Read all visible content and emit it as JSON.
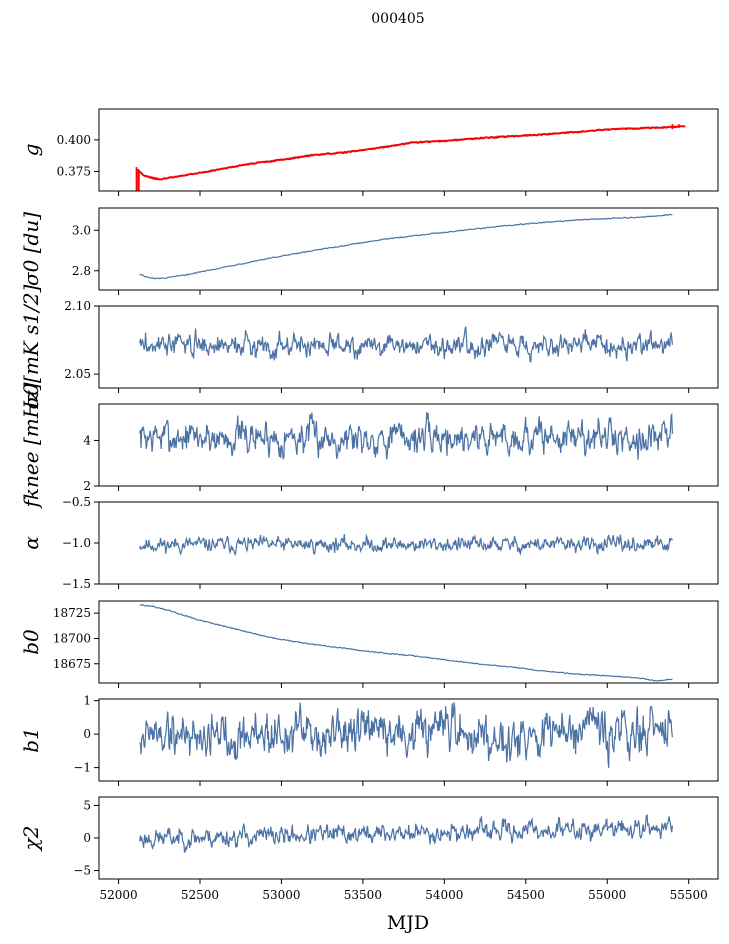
{
  "title": "000405",
  "xlabel": "MJD",
  "colors": {
    "series": "#4c72a4",
    "fit": "#ff0000",
    "axes": "#000000",
    "background": "#ffffff"
  },
  "chart_data": [
    {
      "type": "line",
      "ylabel": "g",
      "xlim": [
        51880,
        55680
      ],
      "ylim": [
        0.3595,
        0.4245
      ],
      "yticks": [
        0.375,
        0.4
      ],
      "ytick_labels": [
        "0.375",
        "0.400"
      ],
      "series": [
        {
          "x": [
            52110,
            52130,
            52160,
            52200,
            52250,
            52300,
            52400,
            52500,
            52600,
            52700,
            52800,
            52900,
            53000,
            53100,
            53200,
            53300,
            53400,
            53500,
            53600,
            53700,
            53800,
            53900,
            54000,
            54100,
            54200,
            54300,
            54400,
            54500,
            54600,
            54700,
            54800,
            54900,
            55000,
            55100,
            55200,
            55300,
            55400,
            55480
          ],
          "y": [
            0.377,
            0.3745,
            0.3715,
            0.3695,
            0.369,
            0.3695,
            0.372,
            0.374,
            0.3765,
            0.3785,
            0.381,
            0.383,
            0.3845,
            0.3865,
            0.3885,
            0.389,
            0.3905,
            0.392,
            0.394,
            0.396,
            0.398,
            0.399,
            0.3995,
            0.4005,
            0.4015,
            0.4025,
            0.403,
            0.403,
            0.4045,
            0.4055,
            0.4065,
            0.407,
            0.4085,
            0.409,
            0.4095,
            0.41,
            0.4105,
            0.411
          ]
        }
      ],
      "fit": {
        "x": [
          52110,
          52160,
          52250,
          52400,
          52600,
          52800,
          53000,
          53200,
          53400,
          53600,
          53800,
          54000,
          54200,
          54400,
          54600,
          54800,
          55000,
          55200,
          55400,
          55480
        ],
        "y": [
          0.3765,
          0.3715,
          0.3688,
          0.3718,
          0.3762,
          0.3808,
          0.3842,
          0.388,
          0.3902,
          0.3937,
          0.3978,
          0.3992,
          0.4012,
          0.4028,
          0.4042,
          0.4062,
          0.4082,
          0.4092,
          0.4102,
          0.4108
        ]
      }
    },
    {
      "type": "line",
      "ylabel": "σ0 [du]",
      "xlim": [
        51880,
        55680
      ],
      "ylim": [
        2.705,
        3.11
      ],
      "yticks": [
        2.8,
        3.0
      ],
      "ytick_labels": [
        "2.8",
        "3.0"
      ],
      "series": [
        {
          "x": [
            52130,
            52160,
            52200,
            52250,
            52300,
            52400,
            52500,
            52600,
            52700,
            52800,
            52900,
            53000,
            53200,
            53400,
            53600,
            53800,
            54000,
            54200,
            54400,
            54600,
            54800,
            55000,
            55200,
            55400
          ],
          "y": [
            2.785,
            2.772,
            2.763,
            2.762,
            2.765,
            2.778,
            2.794,
            2.81,
            2.826,
            2.842,
            2.858,
            2.872,
            2.9,
            2.926,
            2.952,
            2.972,
            2.99,
            3.008,
            3.024,
            3.038,
            3.05,
            3.058,
            3.064,
            3.078
          ]
        }
      ]
    },
    {
      "type": "line",
      "ylabel": "σ0[mK s1/2]",
      "xlim": [
        51880,
        55680
      ],
      "ylim": [
        2.0398,
        2.1
      ],
      "yticks": [
        2.05,
        2.1
      ],
      "ytick_labels": [
        "2.05",
        "2.10"
      ],
      "series": [
        {
          "x_range": [
            52130,
            55400
          ],
          "mean": 2.0715,
          "noise": 0.0042,
          "seed": 3
        }
      ]
    },
    {
      "type": "line",
      "ylabel": "fknee [mHz]",
      "xlim": [
        51880,
        55680
      ],
      "ylim": [
        2.0,
        5.6
      ],
      "yticks": [
        2,
        4
      ],
      "ytick_labels": [
        "2",
        "4"
      ],
      "series": [
        {
          "x_range": [
            52130,
            55400
          ],
          "mean": 4.15,
          "noise": 0.38,
          "seed": 7
        }
      ]
    },
    {
      "type": "line",
      "ylabel": "α",
      "xlim": [
        51880,
        55680
      ],
      "ylim": [
        -1.5,
        -0.5
      ],
      "yticks": [
        -1.5,
        -1.0,
        -0.5
      ],
      "ytick_labels": [
        "−1.5",
        "−1.0",
        "−0.5"
      ],
      "series": [
        {
          "x_range": [
            52130,
            55400
          ],
          "mean": -1.02,
          "noise": 0.045,
          "seed": 11
        }
      ]
    },
    {
      "type": "line",
      "ylabel": "b0",
      "xlim": [
        51880,
        55680
      ],
      "ylim": [
        18656,
        18737
      ],
      "yticks": [
        18675,
        18700,
        18725
      ],
      "ytick_labels": [
        "18675",
        "18700",
        "18725"
      ],
      "series": [
        {
          "x": [
            52130,
            52200,
            52300,
            52400,
            52500,
            52600,
            52700,
            52800,
            52900,
            53000,
            53200,
            53400,
            53600,
            53800,
            54000,
            54200,
            54400,
            54600,
            54800,
            55000,
            55200,
            55300,
            55400
          ],
          "y": [
            18733,
            18732,
            18728,
            18723,
            18718,
            18714,
            18710,
            18706,
            18702,
            18699,
            18694,
            18690,
            18686,
            18683,
            18679,
            18675,
            18672,
            18668,
            18665,
            18663,
            18661,
            18658,
            18660
          ]
        }
      ]
    },
    {
      "type": "line",
      "ylabel": "b1",
      "xlim": [
        51880,
        55680
      ],
      "ylim": [
        -1.4,
        1.05
      ],
      "yticks": [
        -1,
        0,
        1
      ],
      "ytick_labels": [
        "−1",
        "0",
        "1"
      ],
      "series": [
        {
          "x_range": [
            52130,
            55400
          ],
          "mean": 0.0,
          "noise": 0.35,
          "seed": 19
        }
      ]
    },
    {
      "type": "line",
      "ylabel": "χ2",
      "xlim": [
        51880,
        55680
      ],
      "ylim": [
        -6.3,
        6.3
      ],
      "yticks": [
        -5,
        0,
        5
      ],
      "ytick_labels": [
        "−5",
        "0",
        "5"
      ],
      "series": [
        {
          "x_range": [
            52130,
            55400
          ],
          "mean_start": -0.1,
          "mean_end": 1.6,
          "noise": 0.75,
          "seed": 23
        }
      ]
    }
  ],
  "xticks": [
    52000,
    52500,
    53000,
    53500,
    54000,
    54500,
    55000,
    55500
  ],
  "xtick_labels": [
    "52000",
    "52500",
    "53000",
    "53500",
    "54000",
    "54500",
    "55000",
    "55500"
  ]
}
